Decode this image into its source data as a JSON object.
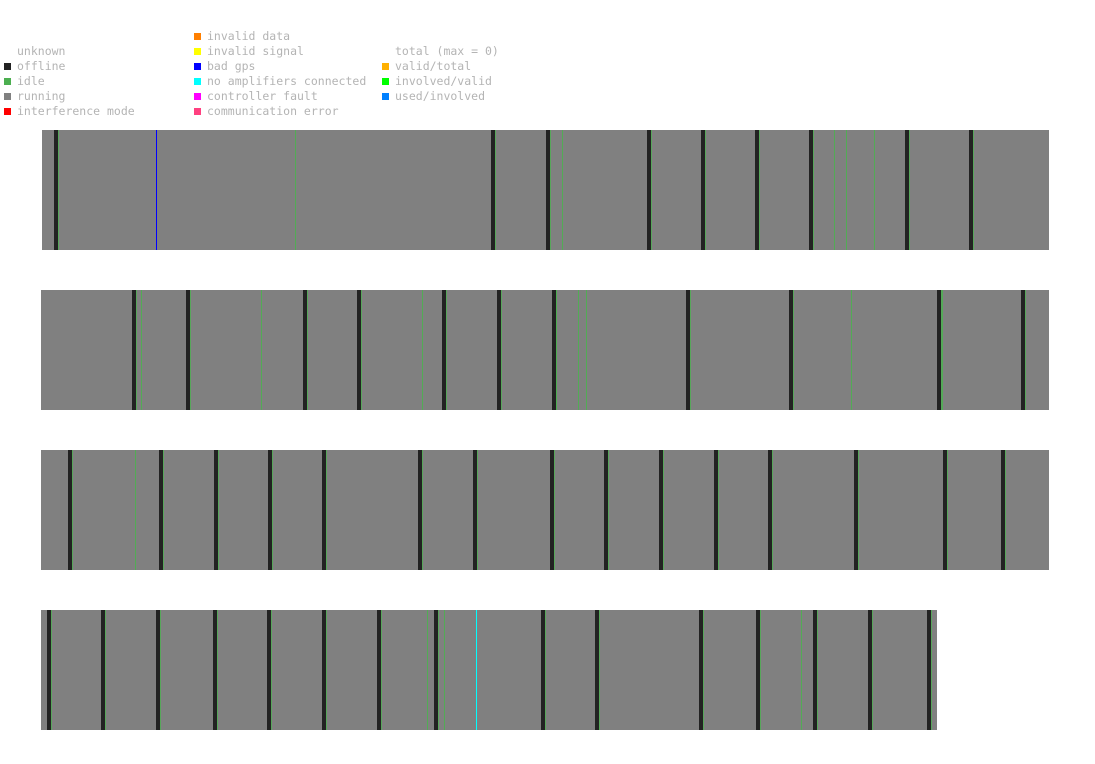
{
  "legend": {
    "status": [
      {
        "label": "unknown",
        "color": null
      },
      {
        "label": "offline",
        "color": "#222222"
      },
      {
        "label": "idle",
        "color": "#4caf50"
      },
      {
        "label": "running",
        "color": "#808080"
      },
      {
        "label": "interference mode",
        "color": "#ff0000"
      }
    ],
    "errors": [
      {
        "label": "invalid data",
        "color": "#ff7f00"
      },
      {
        "label": "invalid signal",
        "color": "#ffff00"
      },
      {
        "label": "bad gps",
        "color": "#0000ff"
      },
      {
        "label": "no amplifiers connected",
        "color": "#00ffff"
      },
      {
        "label": "controller fault",
        "color": "#ff00ff"
      },
      {
        "label": "communication error",
        "color": "#ff4080"
      }
    ],
    "ratios": [
      {
        "label": "total (max = 0)",
        "color": null
      },
      {
        "label": "valid/total",
        "color": "#ffb000"
      },
      {
        "label": "involved/valid",
        "color": "#00ff00"
      },
      {
        "label": "used/involved",
        "color": "#0080ff"
      }
    ]
  },
  "chart_data": {
    "type": "timeline",
    "lanes": [
      {
        "events": [
          {
            "t": 12,
            "status": "offline"
          },
          {
            "t": 114,
            "status": "bad gps"
          },
          {
            "t": 253,
            "status": "idle"
          },
          {
            "t": 449,
            "status": "offline"
          },
          {
            "t": 504,
            "status": "offline"
          },
          {
            "t": 520,
            "status": "idle"
          },
          {
            "t": 605,
            "status": "offline"
          },
          {
            "t": 659,
            "status": "offline"
          },
          {
            "t": 713,
            "status": "offline"
          },
          {
            "t": 767,
            "status": "offline"
          },
          {
            "t": 792,
            "status": "idle"
          },
          {
            "t": 804,
            "status": "idle"
          },
          {
            "t": 832,
            "status": "idle"
          },
          {
            "t": 863,
            "status": "offline"
          },
          {
            "t": 927,
            "status": "offline"
          }
        ]
      },
      {
        "events": [
          {
            "t": 91,
            "status": "offline"
          },
          {
            "t": 100,
            "status": "idle"
          },
          {
            "t": 145,
            "status": "offline"
          },
          {
            "t": 220,
            "status": "idle"
          },
          {
            "t": 262,
            "status": "offline"
          },
          {
            "t": 316,
            "status": "offline"
          },
          {
            "t": 381,
            "status": "idle"
          },
          {
            "t": 401,
            "status": "offline"
          },
          {
            "t": 456,
            "status": "offline"
          },
          {
            "t": 511,
            "status": "offline"
          },
          {
            "t": 515,
            "status": "idle"
          },
          {
            "t": 537,
            "status": "idle"
          },
          {
            "t": 545,
            "status": "idle"
          },
          {
            "t": 645,
            "status": "offline"
          },
          {
            "t": 748,
            "status": "offline"
          },
          {
            "t": 810,
            "status": "idle"
          },
          {
            "t": 896,
            "status": "offline"
          },
          {
            "t": 901,
            "status": "idle"
          },
          {
            "t": 980,
            "status": "offline"
          }
        ]
      },
      {
        "events": [
          {
            "t": 27,
            "status": "offline"
          },
          {
            "t": 94,
            "status": "idle"
          },
          {
            "t": 118,
            "status": "offline"
          },
          {
            "t": 173,
            "status": "offline"
          },
          {
            "t": 227,
            "status": "offline"
          },
          {
            "t": 281,
            "status": "offline"
          },
          {
            "t": 377,
            "status": "offline"
          },
          {
            "t": 432,
            "status": "offline"
          },
          {
            "t": 509,
            "status": "offline"
          },
          {
            "t": 563,
            "status": "offline"
          },
          {
            "t": 618,
            "status": "offline"
          },
          {
            "t": 673,
            "status": "offline"
          },
          {
            "t": 727,
            "status": "offline"
          },
          {
            "t": 813,
            "status": "offline"
          },
          {
            "t": 902,
            "status": "offline"
          },
          {
            "t": 960,
            "status": "offline"
          }
        ]
      },
      {
        "events": [
          {
            "t": 6,
            "status": "offline"
          },
          {
            "t": 60,
            "status": "offline"
          },
          {
            "t": 115,
            "status": "offline"
          },
          {
            "t": 172,
            "status": "offline"
          },
          {
            "t": 226,
            "status": "offline"
          },
          {
            "t": 281,
            "status": "offline"
          },
          {
            "t": 336,
            "status": "offline"
          },
          {
            "t": 386,
            "status": "idle"
          },
          {
            "t": 393,
            "status": "offline"
          },
          {
            "t": 403,
            "status": "idle"
          },
          {
            "t": 435,
            "status": "no amplifiers connected"
          },
          {
            "t": 500,
            "status": "offline"
          },
          {
            "t": 554,
            "status": "offline"
          },
          {
            "t": 658,
            "status": "offline"
          },
          {
            "t": 715,
            "status": "offline"
          },
          {
            "t": 760,
            "status": "idle"
          },
          {
            "t": 772,
            "status": "offline"
          },
          {
            "t": 827,
            "status": "offline"
          },
          {
            "t": 886,
            "status": "offline"
          }
        ]
      }
    ]
  }
}
